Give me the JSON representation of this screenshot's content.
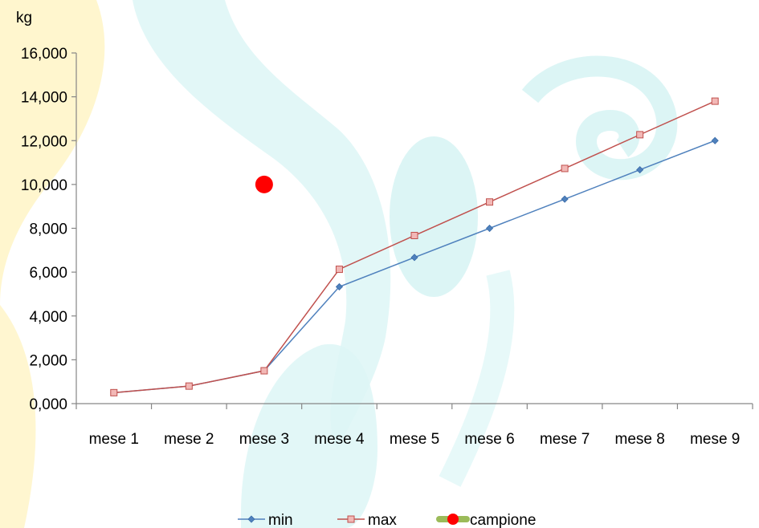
{
  "chart_data": {
    "type": "line",
    "title": "",
    "xlabel": "",
    "ylabel": "kg",
    "categories": [
      "mese 1",
      "mese 2",
      "mese 3",
      "mese 4",
      "mese 5",
      "mese 6",
      "mese 7",
      "mese 8",
      "mese 9"
    ],
    "ylim": [
      0,
      16
    ],
    "yticks": [
      0,
      2,
      4,
      6,
      8,
      10,
      12,
      14,
      16
    ],
    "ytick_labels": [
      "0,000",
      "2,000",
      "4,000",
      "6,000",
      "8,000",
      "10,000",
      "12,000",
      "14,000",
      "16,000"
    ],
    "grid": false,
    "legend_position": "bottom",
    "series": [
      {
        "name": "min",
        "kind": "line",
        "marker": "diamond",
        "color": "#4F81BD",
        "values": [
          0.5,
          0.8,
          1.5,
          5.33,
          6.67,
          8.0,
          9.33,
          10.67,
          12.0
        ]
      },
      {
        "name": "max",
        "kind": "line",
        "marker": "square",
        "color": "#C0504D",
        "values": [
          0.5,
          0.8,
          1.5,
          6.13,
          7.67,
          9.2,
          10.73,
          12.27,
          13.8
        ]
      },
      {
        "name": "campione",
        "kind": "point",
        "marker": "circle",
        "color": "#FF0000",
        "legend_line_color": "#9BBB59",
        "points": [
          {
            "x": "mese 3",
            "y": 10.0
          }
        ]
      }
    ]
  }
}
